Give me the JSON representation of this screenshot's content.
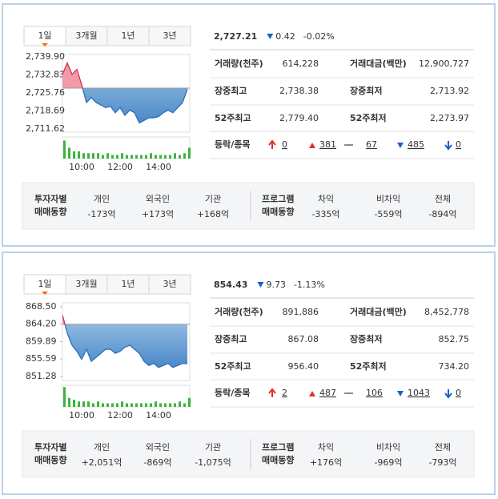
{
  "panels": [
    {
      "tabs": [
        "1일",
        "3개월",
        "1년",
        "3년"
      ],
      "quote": {
        "index": "2,727.21",
        "change": "0.42",
        "change_rate": "-0.02%"
      },
      "chart": {
        "ylim": [
          2710.38,
          2740.83
        ],
        "yticks": [
          {
            "value": 2739.9,
            "label": "2,739.90"
          },
          {
            "value": 2732.83,
            "label": "2,732.83"
          },
          {
            "value": 2725.76,
            "label": "2,725.76"
          },
          {
            "value": 2718.69,
            "label": "2,718.69"
          },
          {
            "value": 2711.62,
            "label": "2,711.62"
          }
        ],
        "baseline": 2727.63,
        "x": [
          "09:00",
          "09:15",
          "09:30",
          "09:45",
          "10:00",
          "10:15",
          "10:30",
          "10:45",
          "11:00",
          "11:15",
          "11:30",
          "11:45",
          "12:00",
          "12:15",
          "12:30",
          "12:45",
          "13:00",
          "13:15",
          "13:30",
          "13:45",
          "14:00",
          "14:15",
          "14:30",
          "14:45",
          "15:00",
          "15:15",
          "15:30"
        ],
        "xticks": [
          "10:00",
          "12:00",
          "14:00"
        ],
        "values": [
          2733,
          2737.5,
          2733,
          2735,
          2729,
          2722,
          2724,
          2722,
          2721,
          2720,
          2720.5,
          2718,
          2720,
          2717,
          2719,
          2718,
          2714,
          2715,
          2716,
          2716,
          2716.5,
          2718,
          2719,
          2718,
          2720,
          2722,
          2727.21
        ],
        "volume": [
          10,
          6,
          4,
          4,
          3,
          3,
          3,
          3,
          2,
          3,
          2,
          2,
          3,
          2,
          2,
          2,
          2,
          2,
          3,
          2,
          2,
          2,
          2,
          3,
          2,
          3,
          6
        ],
        "volume_lim": [
          0,
          12
        ]
      },
      "stats": [
        {
          "label": "거래량(천주)",
          "value": "614,228"
        },
        {
          "label": "거래대금(백만)",
          "value": "12,900,727"
        },
        {
          "label": "장중최고",
          "value": "2,738.38"
        },
        {
          "label": "장중최저",
          "value": "2,713.92"
        },
        {
          "label": "52주최고",
          "value": "2,779.40"
        },
        {
          "label": "52주최저",
          "value": "2,273.97"
        }
      ],
      "breadth": {
        "label": "등락/종목",
        "upper": "0",
        "up": "381",
        "flat": "67",
        "down": "485",
        "lower": "0"
      },
      "investors": {
        "title": [
          "투자자별",
          "매매동향"
        ],
        "items": [
          {
            "label": "개인",
            "value": "-173억"
          },
          {
            "label": "외국인",
            "value": "+173억"
          },
          {
            "label": "기관",
            "value": "+168억"
          }
        ]
      },
      "program": {
        "title": [
          "프로그램",
          "매매동향"
        ],
        "items": [
          {
            "label": "차익",
            "value": "-335억"
          },
          {
            "label": "비차익",
            "value": "-559억"
          },
          {
            "label": "전체",
            "value": "-894억"
          }
        ]
      }
    },
    {
      "tabs": [
        "1일",
        "3개월",
        "1년",
        "3년"
      ],
      "quote": {
        "index": "854.43",
        "change": "9.73",
        "change_rate": "-1.13%"
      },
      "chart": {
        "ylim": [
          850.29,
          869.49
        ],
        "yticks": [
          {
            "value": 868.5,
            "label": "868.50"
          },
          {
            "value": 864.2,
            "label": "864.20"
          },
          859.89,
          855.59,
          851.28
        ],
        "baseline": 864.16,
        "x": [
          "09:00",
          "09:15",
          "09:30",
          "09:45",
          "10:00",
          "10:15",
          "10:30",
          "10:45",
          "11:00",
          "11:15",
          "11:30",
          "11:45",
          "12:00",
          "12:15",
          "12:30",
          "12:45",
          "13:00",
          "13:15",
          "13:30",
          "13:45",
          "14:00",
          "14:15",
          "14:30",
          "14:45",
          "15:00",
          "15:15",
          "15:30"
        ],
        "xticks": [
          "10:00",
          "12:00",
          "14:00"
        ],
        "values": [
          866.5,
          862,
          859,
          857.5,
          855.5,
          858,
          855,
          856,
          857,
          858,
          858,
          857,
          857.5,
          858.5,
          859,
          858,
          857,
          855,
          854,
          854.5,
          853.5,
          854,
          854.5,
          853.5,
          854,
          854.5,
          854.43
        ],
        "volume": [
          11,
          5,
          4,
          3,
          3,
          3,
          2,
          3,
          2,
          2,
          2,
          2,
          3,
          2,
          2,
          2,
          2,
          2,
          2,
          3,
          2,
          2,
          2,
          2,
          3,
          2,
          5
        ],
        "volume_lim": [
          0,
          12
        ]
      },
      "stats": [
        {
          "label": "거래량(천주)",
          "value": "891,886"
        },
        {
          "label": "거래대금(백만)",
          "value": "8,452,778"
        },
        {
          "label": "장중최고",
          "value": "867.08"
        },
        {
          "label": "장중최저",
          "value": "852.75"
        },
        {
          "label": "52주최고",
          "value": "956.40"
        },
        {
          "label": "52주최저",
          "value": "734.20"
        }
      ],
      "breadth": {
        "label": "등락/종목",
        "upper": "2",
        "up": "487",
        "flat": "106",
        "down": "1043",
        "lower": "0"
      },
      "investors": {
        "title": [
          "투자자별",
          "매매동향"
        ],
        "items": [
          {
            "label": "개인",
            "value": "+2,051억"
          },
          {
            "label": "외국인",
            "value": "-869억"
          },
          {
            "label": "기관",
            "value": "-1,075억"
          }
        ]
      },
      "program": {
        "title": [
          "프로그램",
          "매매동향"
        ],
        "items": [
          {
            "label": "차익",
            "value": "+176억"
          },
          {
            "label": "비차익",
            "value": "-969억"
          },
          {
            "label": "전체",
            "value": "-793억"
          }
        ]
      }
    }
  ]
}
